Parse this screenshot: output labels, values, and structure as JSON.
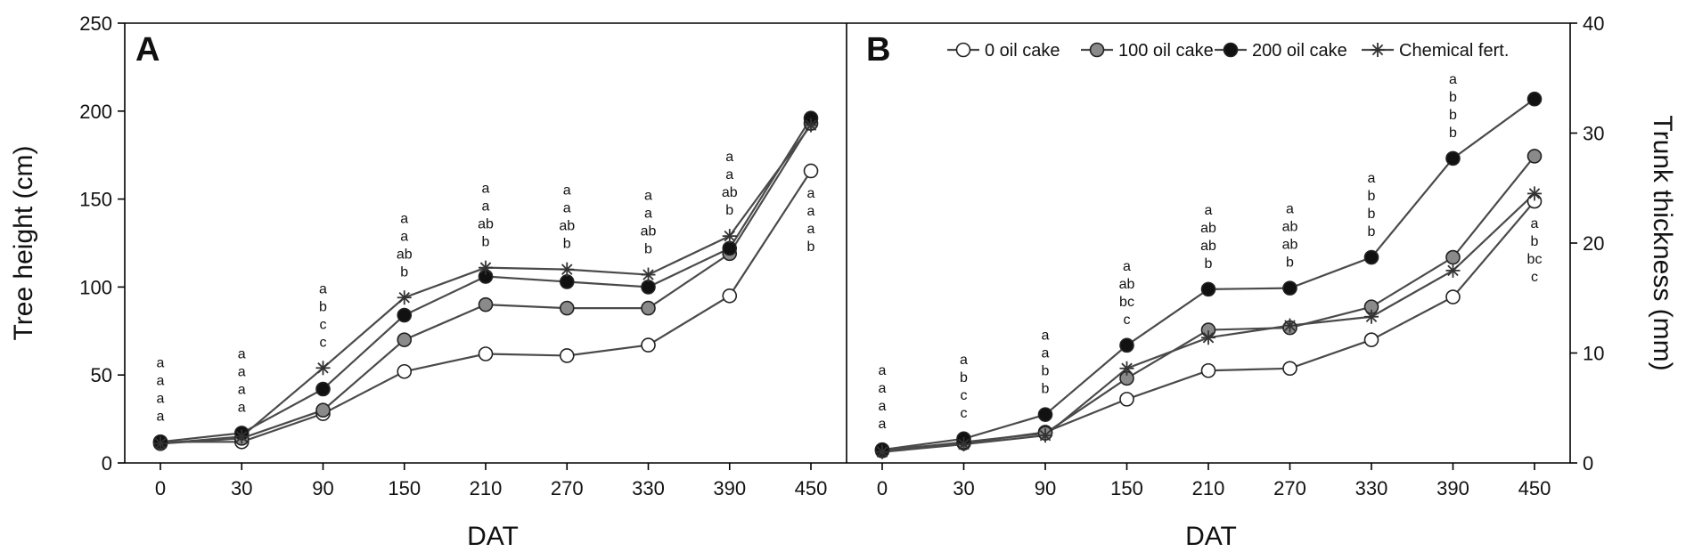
{
  "chart_data": [
    {
      "panel": "A",
      "type": "line",
      "categories": [
        "0",
        "30",
        "90",
        "150",
        "210",
        "270",
        "330",
        "390",
        "450"
      ],
      "xlabel": "DAT",
      "ylabel": "Tree height (cm)",
      "ylim": [
        0,
        250
      ],
      "yticks": [
        "0",
        "50",
        "100",
        "150",
        "200",
        "250"
      ],
      "grid": false,
      "series": [
        {
          "name": "0 oil cake",
          "marker": "open-circle",
          "values": [
            12,
            12,
            28,
            52,
            62,
            61,
            67,
            95,
            166
          ]
        },
        {
          "name": "100 oil cake",
          "marker": "gray-circle",
          "values": [
            11,
            14,
            30,
            70,
            90,
            88,
            88,
            119,
            193
          ]
        },
        {
          "name": "200 oil cake",
          "marker": "black-circle",
          "values": [
            12,
            17,
            42,
            84,
            106,
            103,
            100,
            122,
            196
          ]
        },
        {
          "name": "Chemical fert.",
          "marker": "star",
          "values": [
            11,
            15,
            54,
            94,
            111,
            110,
            107,
            129,
            192
          ]
        }
      ],
      "significance_letters": [
        {
          "category": "0",
          "letters": [
            "a",
            "a",
            "a",
            "a"
          ]
        },
        {
          "category": "30",
          "letters": [
            "a",
            "a",
            "a",
            "a"
          ]
        },
        {
          "category": "90",
          "letters": [
            "a",
            "b",
            "c",
            "c"
          ]
        },
        {
          "category": "150",
          "letters": [
            "a",
            "a",
            "ab",
            "b"
          ]
        },
        {
          "category": "210",
          "letters": [
            "a",
            "a",
            "ab",
            "b"
          ]
        },
        {
          "category": "270",
          "letters": [
            "a",
            "a",
            "ab",
            "b"
          ]
        },
        {
          "category": "330",
          "letters": [
            "a",
            "a",
            "ab",
            "b"
          ]
        },
        {
          "category": "390",
          "letters": [
            "a",
            "a",
            "ab",
            "b"
          ]
        },
        {
          "category": "450",
          "letters": [
            "a",
            "a",
            "a",
            "b"
          ]
        }
      ]
    },
    {
      "panel": "B",
      "type": "line",
      "categories": [
        "0",
        "30",
        "90",
        "150",
        "210",
        "270",
        "330",
        "390",
        "450"
      ],
      "xlabel": "DAT",
      "ylabel": "Trunk thickness (mm)",
      "ylim": [
        0,
        40
      ],
      "yticks": [
        "0",
        "10",
        "20",
        "30",
        "40"
      ],
      "grid": false,
      "legend_position": "top-right",
      "series": [
        {
          "name": "0 oil cake",
          "marker": "open-circle",
          "values": [
            1.2,
            1.8,
            2.8,
            5.8,
            8.4,
            8.6,
            11.2,
            15.1,
            23.8
          ]
        },
        {
          "name": "100 oil cake",
          "marker": "gray-circle",
          "values": [
            1.1,
            1.9,
            2.7,
            7.7,
            12.1,
            12.3,
            14.2,
            18.7,
            27.9
          ]
        },
        {
          "name": "200 oil cake",
          "marker": "black-circle",
          "values": [
            1.2,
            2.2,
            4.4,
            10.7,
            15.8,
            15.9,
            18.7,
            27.7,
            33.1
          ]
        },
        {
          "name": "Chemical fert.",
          "marker": "star",
          "values": [
            1.0,
            1.7,
            2.5,
            8.6,
            11.4,
            12.5,
            13.3,
            17.5,
            24.5
          ]
        }
      ],
      "significance_letters": [
        {
          "category": "0",
          "letters": [
            "a",
            "a",
            "a",
            "a"
          ]
        },
        {
          "category": "30",
          "letters": [
            "a",
            "b",
            "c",
            "c"
          ]
        },
        {
          "category": "90",
          "letters": [
            "a",
            "a",
            "b",
            "b"
          ]
        },
        {
          "category": "150",
          "letters": [
            "a",
            "ab",
            "bc",
            "c"
          ]
        },
        {
          "category": "210",
          "letters": [
            "a",
            "ab",
            "ab",
            "b"
          ]
        },
        {
          "category": "270",
          "letters": [
            "a",
            "ab",
            "ab",
            "b"
          ]
        },
        {
          "category": "330",
          "letters": [
            "a",
            "b",
            "b",
            "b"
          ]
        },
        {
          "category": "390",
          "letters": [
            "a",
            "b",
            "b",
            "b"
          ]
        },
        {
          "category": "450",
          "letters": [
            "a",
            "b",
            "bc",
            "c"
          ]
        }
      ]
    }
  ],
  "colors": {
    "line": "#4a4a4a",
    "open_circle_fill": "#ffffff",
    "gray_circle_fill": "#8a8a8a",
    "black_circle_fill": "#111111",
    "star": "#333333"
  }
}
